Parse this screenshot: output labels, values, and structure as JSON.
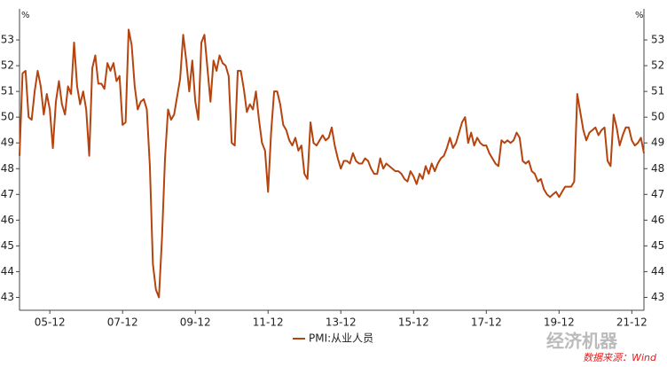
{
  "chart_data": {
    "type": "line",
    "y_unit": "%",
    "categories": [
      null,
      null,
      null,
      null,
      null,
      null,
      null,
      null,
      null,
      null,
      "05-12",
      null,
      null,
      null,
      null,
      null,
      null,
      null,
      null,
      null,
      null,
      null,
      null,
      null,
      null,
      null,
      null,
      null,
      null,
      null,
      null,
      null,
      null,
      null,
      "07-12",
      null,
      null,
      null,
      null,
      null,
      null,
      null,
      null,
      null,
      null,
      null,
      null,
      null,
      null,
      null,
      null,
      null,
      null,
      null,
      null,
      null,
      null,
      null,
      "09-12",
      null,
      null,
      null,
      null,
      null,
      null,
      null,
      null,
      null,
      null,
      null,
      null,
      null,
      null,
      null,
      null,
      null,
      null,
      null,
      null,
      null,
      null,
      null,
      "11-12",
      null,
      null,
      null,
      null,
      null,
      null,
      null,
      null,
      null,
      null,
      null,
      null,
      null,
      null,
      null,
      null,
      null,
      null,
      null,
      null,
      null,
      null,
      null,
      "13-12",
      null,
      null,
      null,
      null,
      null,
      null,
      null,
      null,
      null,
      null,
      null,
      null,
      null,
      null,
      null,
      null,
      null,
      null,
      null,
      null,
      null,
      null,
      null,
      "15-12",
      null,
      null,
      null,
      null,
      null,
      null,
      null,
      null,
      null,
      null,
      null,
      null,
      null,
      null,
      null,
      null,
      null,
      null,
      null,
      null,
      null,
      null,
      null,
      "17-12",
      null,
      null,
      null,
      null,
      null,
      null,
      null,
      null,
      null,
      null,
      null,
      null,
      null,
      null,
      null,
      null,
      null,
      null,
      null,
      null,
      null,
      null,
      null,
      "19-12",
      null,
      null,
      null,
      null,
      null,
      null,
      null,
      null,
      null,
      null,
      null,
      null,
      null,
      null,
      null,
      null,
      null,
      null,
      null,
      null,
      null,
      null,
      null,
      "21-12",
      null,
      null,
      null,
      null
    ],
    "series": [
      {
        "name": "PMI:从业人员",
        "color": "#b5440e",
        "values": [
          48.5,
          51.7,
          51.8,
          50.0,
          49.9,
          51.0,
          51.8,
          51.2,
          50.1,
          50.9,
          50.3,
          48.8,
          50.6,
          51.4,
          50.5,
          50.1,
          51.2,
          50.9,
          52.9,
          51.2,
          50.5,
          51.0,
          50.3,
          48.5,
          51.9,
          52.4,
          51.3,
          51.3,
          51.1,
          52.1,
          51.8,
          52.1,
          51.4,
          51.6,
          49.7,
          49.8,
          53.4,
          52.8,
          51.2,
          50.3,
          50.6,
          50.7,
          50.3,
          48.1,
          44.3,
          43.3,
          43.0,
          45.3,
          48.4,
          50.3,
          49.9,
          50.1,
          50.8,
          51.5,
          53.2,
          52.2,
          51.0,
          52.2,
          50.6,
          49.9,
          52.9,
          53.2,
          51.9,
          50.6,
          52.2,
          51.8,
          52.4,
          52.1,
          52.0,
          51.6,
          49.0,
          48.9,
          51.8,
          51.8,
          51.1,
          50.2,
          50.5,
          50.3,
          51.0,
          49.9,
          49.0,
          48.7,
          47.1,
          49.4,
          51.0,
          51.0,
          50.5,
          49.7,
          49.5,
          49.1,
          48.9,
          49.2,
          48.7,
          48.9,
          47.8,
          47.6,
          49.8,
          49.0,
          48.9,
          49.1,
          49.3,
          49.1,
          49.2,
          49.6,
          48.9,
          48.4,
          48.0,
          48.3,
          48.3,
          48.2,
          48.6,
          48.3,
          48.2,
          48.2,
          48.4,
          48.3,
          48.0,
          47.8,
          47.8,
          48.4,
          48.0,
          48.2,
          48.1,
          48.0,
          47.9,
          47.9,
          47.8,
          47.6,
          47.5,
          47.9,
          47.7,
          47.4,
          47.8,
          47.6,
          48.1,
          47.8,
          48.2,
          47.9,
          48.2,
          48.4,
          48.5,
          48.8,
          49.2,
          48.8,
          49.0,
          49.4,
          49.8,
          50.0,
          49.0,
          49.4,
          48.9,
          49.2,
          49.0,
          48.9,
          48.9,
          48.6,
          48.4,
          48.2,
          48.1,
          49.1,
          49.0,
          49.1,
          49.0,
          49.1,
          49.4,
          49.2,
          48.3,
          48.2,
          48.3,
          47.9,
          47.8,
          47.5,
          47.6,
          47.2,
          47.0,
          46.9,
          47.0,
          47.1,
          46.9,
          47.1,
          47.3,
          47.3,
          47.3,
          47.5,
          50.9,
          50.2,
          49.5,
          49.1,
          49.4,
          49.5,
          49.6,
          49.3,
          49.5,
          49.6,
          48.3,
          48.1,
          50.1,
          49.6,
          48.9,
          49.3,
          49.6,
          49.6,
          49.1,
          48.9,
          49.0,
          49.2,
          48.6
        ]
      }
    ],
    "ylim": [
      42.5,
      54
    ],
    "yticks": [
      43,
      44,
      45,
      46,
      47,
      48,
      49,
      50,
      51,
      52,
      53
    ],
    "legend": "bottom",
    "watermark": "经济机器",
    "source": "数据来源：Wind"
  }
}
